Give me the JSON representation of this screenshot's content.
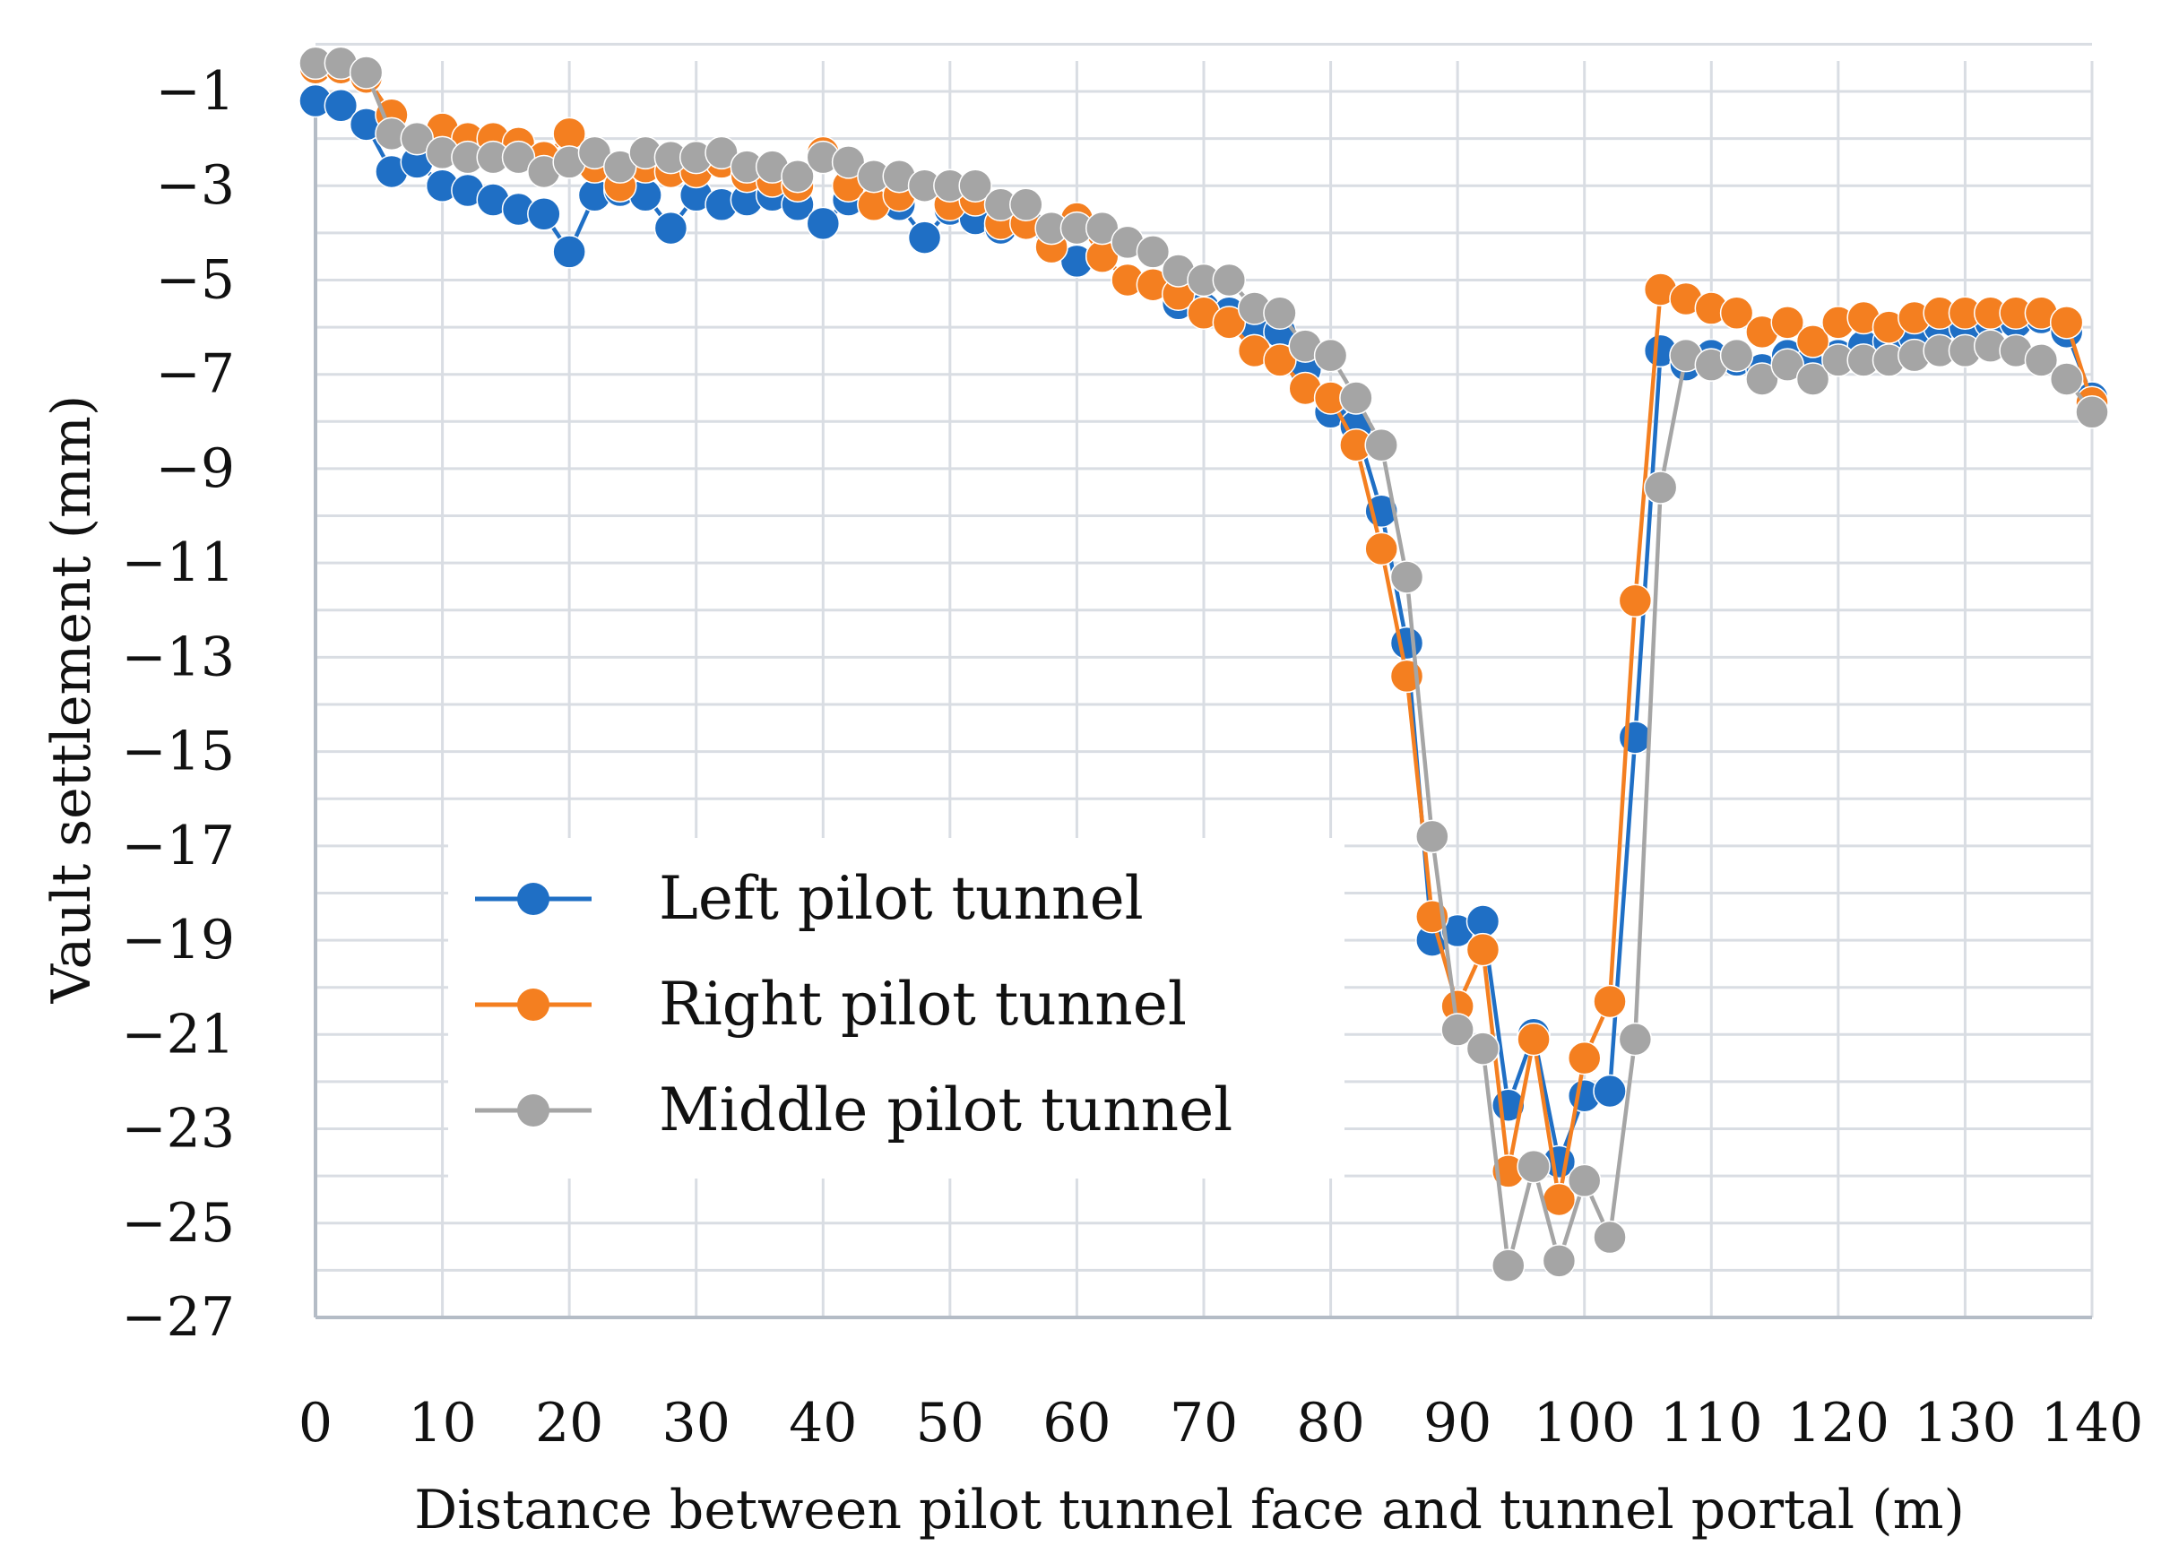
{
  "chart_data": {
    "type": "line",
    "title": "",
    "xlabel": "Distance between pilot tunnel face and tunnel portal (m)",
    "ylabel": "Vault settlement (mm)",
    "xlim": [
      0,
      140
    ],
    "ylim": [
      -27,
      0
    ],
    "x_ticks": [
      0,
      10,
      20,
      30,
      40,
      50,
      60,
      70,
      80,
      90,
      100,
      110,
      120,
      130,
      140
    ],
    "x_tick_labels": [
      "0",
      "10",
      "20",
      "30",
      "40",
      "50",
      "60",
      "70",
      "80",
      "90",
      "100",
      "110",
      "120",
      "130",
      "140"
    ],
    "y_ticks": [
      -1,
      -3,
      -5,
      -7,
      -9,
      -11,
      -13,
      -15,
      -17,
      -19,
      -21,
      -23,
      -25,
      -27
    ],
    "y_tick_labels": [
      "−1",
      "−3",
      "−5",
      "−7",
      "−9",
      "−11",
      "−13",
      "−15",
      "−17",
      "−19",
      "−21",
      "−23",
      "−25",
      "−27"
    ],
    "grid": true,
    "legend_position": "lower-left",
    "x": [
      0,
      2,
      4,
      6,
      8,
      10,
      12,
      14,
      16,
      18,
      20,
      22,
      24,
      26,
      28,
      30,
      32,
      34,
      36,
      38,
      40,
      42,
      44,
      46,
      48,
      50,
      52,
      54,
      56,
      58,
      60,
      62,
      64,
      66,
      68,
      70,
      72,
      74,
      76,
      78,
      80,
      82,
      84,
      86,
      88,
      90,
      92,
      94,
      96,
      98,
      100,
      102,
      104,
      106,
      108,
      110,
      112,
      114,
      116,
      118,
      120,
      122,
      124,
      126,
      128,
      130,
      132,
      134,
      136,
      138,
      140
    ],
    "series": [
      {
        "name": "Left pilot tunnel",
        "color": "#1f6fc5",
        "values": [
          -1.2,
          -1.3,
          -1.7,
          -2.7,
          -2.5,
          -3.0,
          -3.1,
          -3.3,
          -3.5,
          -3.6,
          -4.4,
          -3.2,
          -3.1,
          -3.2,
          -3.9,
          -3.2,
          -3.4,
          -3.3,
          -3.2,
          -3.4,
          -3.8,
          -3.3,
          -3.4,
          -3.4,
          -4.1,
          -3.5,
          -3.7,
          -3.9,
          -3.8,
          -4.0,
          -4.6,
          -4.5,
          -5.0,
          -5.1,
          -5.5,
          -5.6,
          -5.7,
          -6.0,
          -6.1,
          -6.9,
          -7.8,
          -8.1,
          -9.9,
          -12.7,
          -19.0,
          -18.8,
          -18.6,
          -22.5,
          -21.0,
          -23.7,
          -22.3,
          -22.2,
          -14.7,
          -6.5,
          -6.8,
          -6.6,
          -6.7,
          -6.9,
          -6.6,
          -6.7,
          -6.6,
          -6.4,
          -6.3,
          -6.2,
          -6.0,
          -6.0,
          -5.9,
          -5.9,
          -5.8,
          -6.1,
          -7.5
        ]
      },
      {
        "name": "Right pilot tunnel",
        "color": "#f47f20",
        "values": [
          -0.5,
          -0.5,
          -0.7,
          -1.5,
          -2.0,
          -1.8,
          -2.0,
          -2.0,
          -2.1,
          -2.4,
          -1.9,
          -2.6,
          -3.0,
          -2.6,
          -2.7,
          -2.7,
          -2.5,
          -2.8,
          -2.9,
          -3.0,
          -2.3,
          -3.0,
          -3.4,
          -3.2,
          -3.0,
          -3.4,
          -3.3,
          -3.8,
          -3.8,
          -4.3,
          -3.7,
          -4.5,
          -5.0,
          -5.1,
          -5.3,
          -5.7,
          -5.9,
          -6.5,
          -6.7,
          -7.3,
          -7.5,
          -8.5,
          -10.7,
          -13.4,
          -18.5,
          -20.4,
          -19.2,
          -23.9,
          -21.1,
          -24.5,
          -21.5,
          -20.3,
          -11.8,
          -5.2,
          -5.4,
          -5.6,
          -5.7,
          -6.1,
          -5.9,
          -6.3,
          -5.9,
          -5.8,
          -6.0,
          -5.8,
          -5.7,
          -5.7,
          -5.7,
          -5.7,
          -5.7,
          -5.9,
          -7.6
        ]
      },
      {
        "name": "Middle pilot tunnel",
        "color": "#a5a5a5",
        "values": [
          -0.4,
          -0.4,
          -0.6,
          -1.9,
          -2.0,
          -2.3,
          -2.4,
          -2.4,
          -2.4,
          -2.7,
          -2.5,
          -2.3,
          -2.6,
          -2.3,
          -2.4,
          -2.4,
          -2.3,
          -2.6,
          -2.6,
          -2.8,
          -2.4,
          -2.5,
          -2.8,
          -2.8,
          -3.0,
          -3.0,
          -3.0,
          -3.4,
          -3.4,
          -3.9,
          -3.9,
          -3.9,
          -4.2,
          -4.4,
          -4.8,
          -5.0,
          -5.0,
          -5.6,
          -5.7,
          -6.4,
          -6.6,
          -7.5,
          -8.5,
          -11.3,
          -16.8,
          -20.9,
          -21.3,
          -25.9,
          -23.8,
          -25.8,
          -24.1,
          -25.3,
          -21.1,
          -9.4,
          -6.6,
          -6.8,
          -6.6,
          -7.1,
          -6.8,
          -7.1,
          -6.7,
          -6.7,
          -6.7,
          -6.6,
          -6.5,
          -6.5,
          -6.4,
          -6.5,
          -6.7,
          -7.1,
          -7.8
        ]
      }
    ]
  }
}
